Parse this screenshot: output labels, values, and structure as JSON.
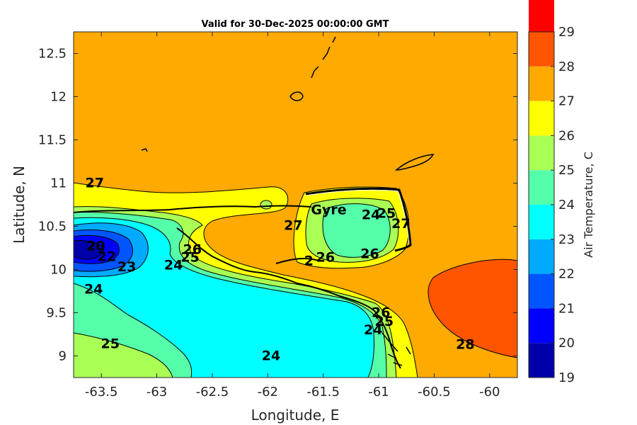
{
  "chart_data": {
    "type": "heatmap",
    "title": "Valid for 30-Dec-2025 00:00:00 GMT",
    "xlabel": "Longitude, E",
    "ylabel": "Latitude, N",
    "xlim": [
      -63.75,
      -59.75
    ],
    "ylim": [
      8.75,
      12.75
    ],
    "x_ticks": [
      -63.5,
      -63,
      -62.5,
      -62,
      -61.5,
      -61,
      -60.5,
      -60
    ],
    "x_tick_labels": [
      "-63.5",
      "-63",
      "-62.5",
      "-62",
      "-61.5",
      "-61",
      "-60.5",
      "-60"
    ],
    "y_ticks": [
      9,
      9.5,
      10,
      10.5,
      11,
      11.5,
      12,
      12.5
    ],
    "y_tick_labels": [
      "9",
      "9.5",
      "10",
      "10.5",
      "11",
      "11.5",
      "12",
      "12.5"
    ],
    "colorbar": {
      "label": "Air Temperature, C",
      "min": 19,
      "max": 29,
      "ticks": [
        "19",
        "20",
        "21",
        "22",
        "23",
        "24",
        "25",
        "26",
        "27",
        "28",
        "29"
      ],
      "colors": [
        "#0000aa",
        "#0000ff",
        "#0055ff",
        "#00aaff",
        "#00ffff",
        "#55ffaa",
        "#aaff55",
        "#ffff00",
        "#ffaa00",
        "#ff5500",
        "#ff0000"
      ]
    },
    "contour_labels": [
      {
        "text": "27",
        "lon": -63.56,
        "lat": 10.95
      },
      {
        "text": "27",
        "lon": -61.77,
        "lat": 10.46
      },
      {
        "text": "24",
        "lon": -61.07,
        "lat": 10.58
      },
      {
        "text": "25",
        "lon": -60.93,
        "lat": 10.6
      },
      {
        "text": "27",
        "lon": -60.8,
        "lat": 10.48
      },
      {
        "text": "26",
        "lon": -61.48,
        "lat": 10.09
      },
      {
        "text": "2",
        "lon": -61.63,
        "lat": 10.05
      },
      {
        "text": "26",
        "lon": -61.08,
        "lat": 10.13
      },
      {
        "text": "26",
        "lon": -62.68,
        "lat": 10.18
      },
      {
        "text": "25",
        "lon": -62.7,
        "lat": 10.09
      },
      {
        "text": "24",
        "lon": -62.85,
        "lat": 10.0
      },
      {
        "text": "20",
        "lon": -63.55,
        "lat": 10.22
      },
      {
        "text": "22",
        "lon": -63.45,
        "lat": 10.1
      },
      {
        "text": "23",
        "lon": -63.27,
        "lat": 9.98
      },
      {
        "text": "24",
        "lon": -63.57,
        "lat": 9.72
      },
      {
        "text": "25",
        "lon": -63.42,
        "lat": 9.09
      },
      {
        "text": "24",
        "lon": -61.97,
        "lat": 8.95
      },
      {
        "text": "24",
        "lon": -61.05,
        "lat": 9.25
      },
      {
        "text": "25",
        "lon": -60.95,
        "lat": 9.35
      },
      {
        "text": "26",
        "lon": -60.98,
        "lat": 9.45
      },
      {
        "text": "28",
        "lon": -60.22,
        "lat": 9.08
      }
    ],
    "annotations": [
      {
        "text": "Gyre",
        "lon": -61.45,
        "lat": 10.64
      }
    ]
  }
}
